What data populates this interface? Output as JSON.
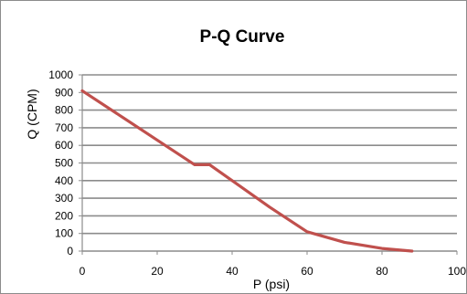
{
  "chart_data": {
    "type": "line",
    "title": "P-Q Curve",
    "xlabel": "P  (psi)",
    "ylabel": "Q (CPM)",
    "xlim": [
      0,
      100
    ],
    "ylim": [
      0,
      1000
    ],
    "x_ticks": [
      "0",
      "20",
      "40",
      "60",
      "80",
      "100"
    ],
    "y_ticks": [
      "0",
      "100",
      "200",
      "300",
      "400",
      "500",
      "600",
      "700",
      "800",
      "900",
      "1000"
    ],
    "grid": true,
    "legend": "none",
    "series": [
      {
        "color": "#c0504d",
        "x": [
          0,
          10,
          20,
          30,
          34,
          40,
          50,
          60,
          70,
          80,
          88
        ],
        "y": [
          910,
          770,
          630,
          490,
          490,
          400,
          250,
          110,
          50,
          15,
          0
        ]
      }
    ]
  }
}
